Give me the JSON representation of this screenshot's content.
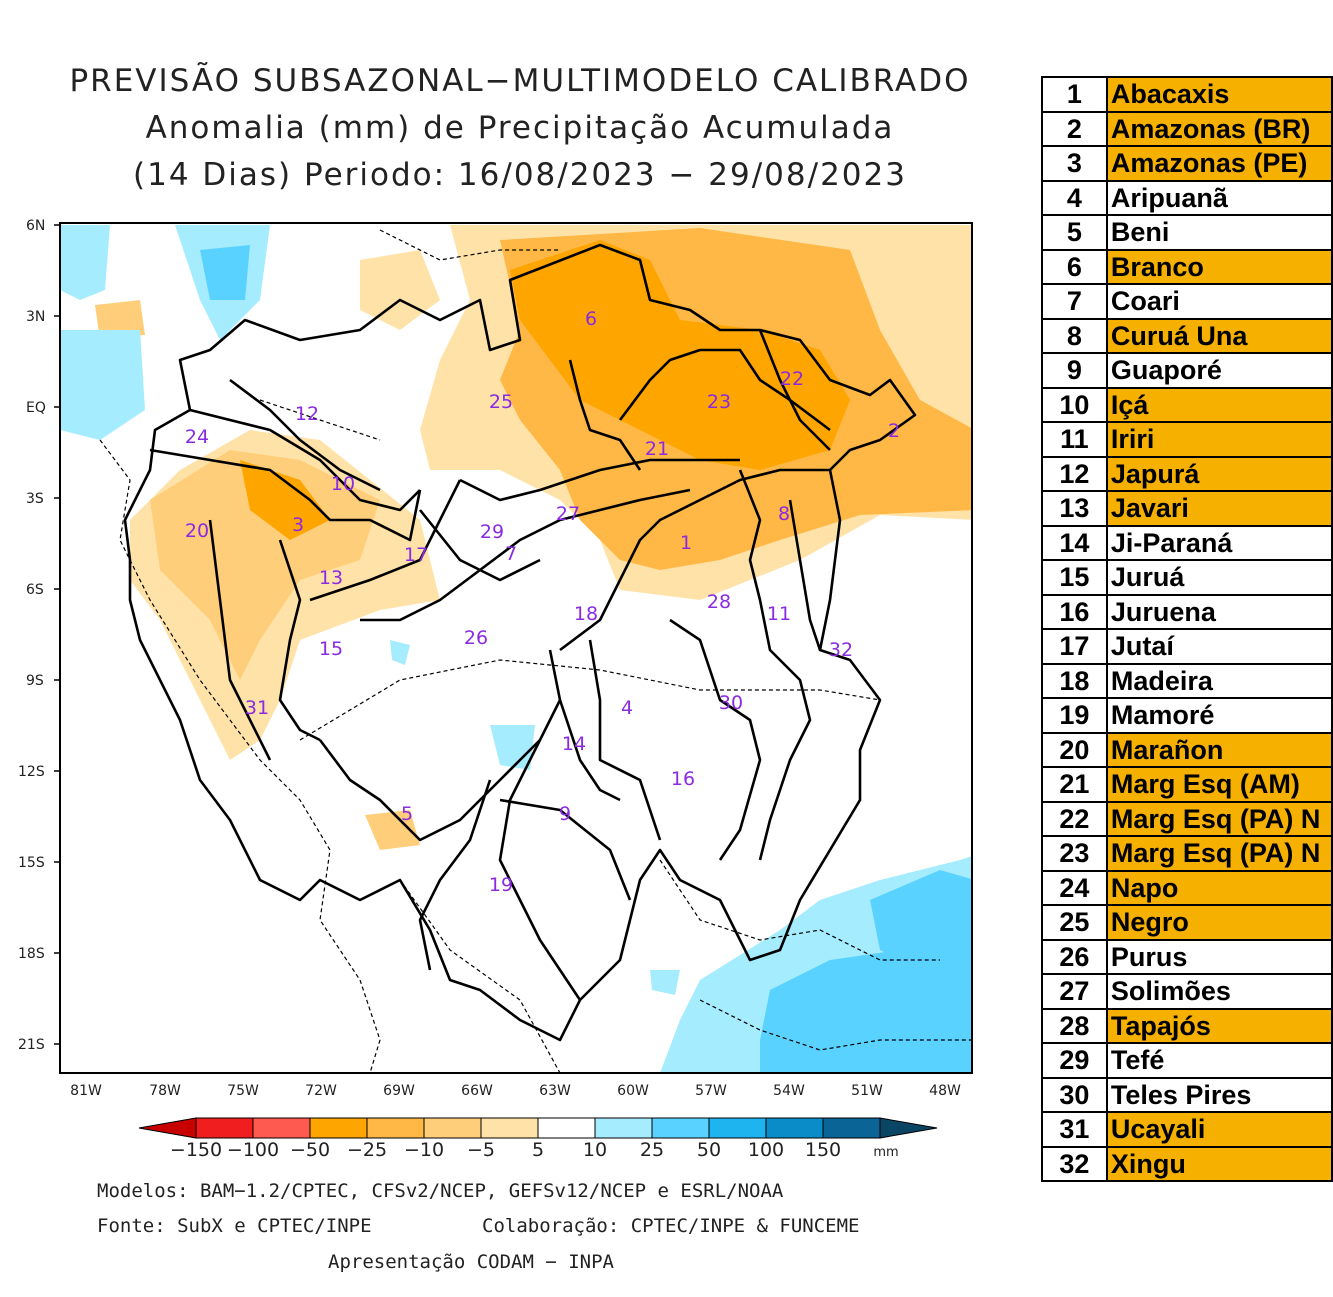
{
  "title": {
    "line1": "PREVISÃO SUBSAZONAL−MULTIMODELO CALIBRADO",
    "line2": "Anomalia (mm) de Precipitação Acumulada",
    "line3": "(14 Dias) Periodo: 16/08/2023 − 29/08/2023"
  },
  "axes": {
    "lat_labels": [
      "6N",
      "3N",
      "EQ",
      "3S",
      "6S",
      "9S",
      "12S",
      "15S",
      "18S",
      "21S"
    ],
    "lon_labels": [
      "81W",
      "78W",
      "75W",
      "72W",
      "69W",
      "66W",
      "63W",
      "60W",
      "57W",
      "54W",
      "51W",
      "48W"
    ]
  },
  "colorbar": {
    "labels": [
      "−150",
      "−100",
      "−50",
      "−25",
      "−10",
      "−5",
      "5",
      "10",
      "25",
      "50",
      "100",
      "150"
    ],
    "unit": "mm",
    "colors": [
      "#c80000",
      "#f01e1e",
      "#ff5a50",
      "#ffa500",
      "#ffb845",
      "#ffce7a",
      "#ffe2a8",
      "#ffffff",
      "#a6ecff",
      "#5ad2ff",
      "#1eb4f0",
      "#0a8cc8",
      "#0a6496",
      "#0a4664"
    ]
  },
  "basin_labels": [
    {
      "n": "1"
    },
    {
      "n": "2"
    },
    {
      "n": "3"
    },
    {
      "n": "4"
    },
    {
      "n": "5"
    },
    {
      "n": "6"
    },
    {
      "n": "7"
    },
    {
      "n": "8"
    },
    {
      "n": "9"
    },
    {
      "n": "10"
    },
    {
      "n": "11"
    },
    {
      "n": "12"
    },
    {
      "n": "13"
    },
    {
      "n": "14"
    },
    {
      "n": "15"
    },
    {
      "n": "16"
    },
    {
      "n": "17"
    },
    {
      "n": "18"
    },
    {
      "n": "19"
    },
    {
      "n": "20"
    },
    {
      "n": "21"
    },
    {
      "n": "22"
    },
    {
      "n": "23"
    },
    {
      "n": "24"
    },
    {
      "n": "25"
    },
    {
      "n": "26"
    },
    {
      "n": "27"
    },
    {
      "n": "28"
    },
    {
      "n": "29"
    },
    {
      "n": "30"
    },
    {
      "n": "31"
    },
    {
      "n": "32"
    }
  ],
  "footer": {
    "models": "Modelos: BAM−1.2/CPTEC, CFSv2/NCEP, GEFSv12/NCEP e ESRL/NOAA",
    "source": "Fonte: SubX e CPTEC/INPE",
    "collab": "Colaboração: CPTEC/INPE & FUNCEME",
    "presentation": "Apresentação CODAM − INPA"
  },
  "basins": [
    {
      "num": "1",
      "name": "Abacaxis",
      "highlight": true
    },
    {
      "num": "2",
      "name": "Amazonas (BR)",
      "highlight": true
    },
    {
      "num": "3",
      "name": "Amazonas (PE)",
      "highlight": true
    },
    {
      "num": "4",
      "name": "Aripuanã",
      "highlight": false
    },
    {
      "num": "5",
      "name": "Beni",
      "highlight": false
    },
    {
      "num": "6",
      "name": "Branco",
      "highlight": true
    },
    {
      "num": "7",
      "name": "Coari",
      "highlight": false
    },
    {
      "num": "8",
      "name": "Curuá Una",
      "highlight": true
    },
    {
      "num": "9",
      "name": "Guaporé",
      "highlight": false
    },
    {
      "num": "10",
      "name": "Içá",
      "highlight": true
    },
    {
      "num": "11",
      "name": "Iriri",
      "highlight": true
    },
    {
      "num": "12",
      "name": "Japurá",
      "highlight": true
    },
    {
      "num": "13",
      "name": "Javari",
      "highlight": true
    },
    {
      "num": "14",
      "name": "Ji-Paraná",
      "highlight": false
    },
    {
      "num": "15",
      "name": "Juruá",
      "highlight": false
    },
    {
      "num": "16",
      "name": "Juruena",
      "highlight": false
    },
    {
      "num": "17",
      "name": "Jutaí",
      "highlight": false
    },
    {
      "num": "18",
      "name": "Madeira",
      "highlight": false
    },
    {
      "num": "19",
      "name": "Mamoré",
      "highlight": false
    },
    {
      "num": "20",
      "name": "Marañon",
      "highlight": true
    },
    {
      "num": "21",
      "name": "Marg Esq (AM)",
      "highlight": true
    },
    {
      "num": "22",
      "name": "Marg Esq (PA) N",
      "highlight": true
    },
    {
      "num": "23",
      "name": "Marg Esq (PA) N",
      "highlight": true
    },
    {
      "num": "24",
      "name": "Napo",
      "highlight": true
    },
    {
      "num": "25",
      "name": "Negro",
      "highlight": true
    },
    {
      "num": "26",
      "name": "Purus",
      "highlight": false
    },
    {
      "num": "27",
      "name": "Solimões",
      "highlight": false
    },
    {
      "num": "28",
      "name": "Tapajós",
      "highlight": true
    },
    {
      "num": "29",
      "name": "Tefé",
      "highlight": false
    },
    {
      "num": "30",
      "name": "Teles Pires",
      "highlight": false
    },
    {
      "num": "31",
      "name": "Ucayali",
      "highlight": true
    },
    {
      "num": "32",
      "name": "Xingu",
      "highlight": true
    }
  ]
}
